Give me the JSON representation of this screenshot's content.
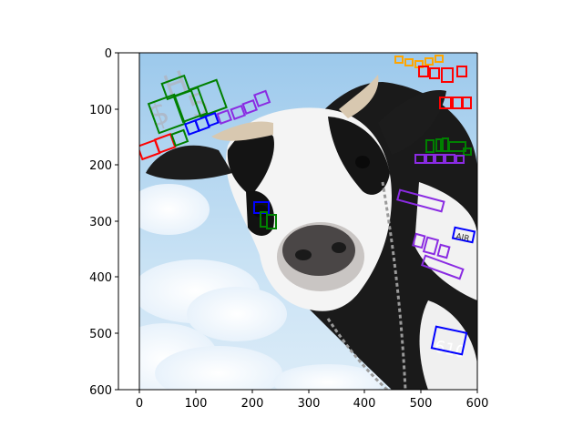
{
  "figure": {
    "image_subject": "cow-photo-with-text-detection-boxes",
    "x_axis": {
      "range": [
        0,
        600
      ],
      "ticks": [
        "0",
        "100",
        "200",
        "300",
        "400",
        "500",
        "600"
      ]
    },
    "y_axis": {
      "range": [
        0,
        600
      ],
      "inverted": true,
      "ticks": [
        "0",
        "100",
        "200",
        "300",
        "400",
        "500",
        "600"
      ]
    },
    "image_text": {
      "big_letters": "H $ 5",
      "word_1": "AIR",
      "number": "610"
    },
    "box_colors": {
      "green": "#008000",
      "blue": "#0000ff",
      "red": "#ff0000",
      "purple": "#8a2be2",
      "orange": "#ffa500"
    }
  }
}
